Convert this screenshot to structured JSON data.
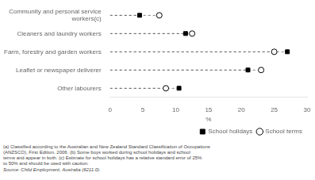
{
  "chart_data": {
    "type": "dot",
    "categories": [
      "Community and personal service\nworkers(c)",
      "Cleaners and laundry workers",
      "Farm, forestry and garden workers",
      "Leaflet or newspaper deliverer",
      "Other labourers"
    ],
    "series": [
      {
        "name": "School holidays",
        "color": "#000000",
        "marker": "square",
        "values": [
          4.5,
          11.5,
          27.0,
          21.0,
          10.5
        ]
      },
      {
        "name": "School terms",
        "color": "#000000",
        "marker": "open_circle",
        "values": [
          7.5,
          12.5,
          25.0,
          23.0,
          8.5
        ]
      }
    ],
    "xlabel": "%",
    "xlim": [
      0,
      30
    ],
    "xticks": [
      0,
      5,
      10,
      15,
      20,
      25,
      30
    ],
    "orientation": "horizontal",
    "line_style": "dashed",
    "grid": false,
    "legend": "lower right",
    "annotations": [
      "(a) Classified according to the Australian and New Zealand Standard Classification of Occupations\n(ANZSCO), First Edition, 2006. (b) Some boys worked during school holidays and school\nterms and appear in both. (c) Estimate for school holidays has a relative standard error of 25%\nto 50% and should be used with caution.",
      "Source: Child Employment, Australia (6211.0)."
    ]
  }
}
